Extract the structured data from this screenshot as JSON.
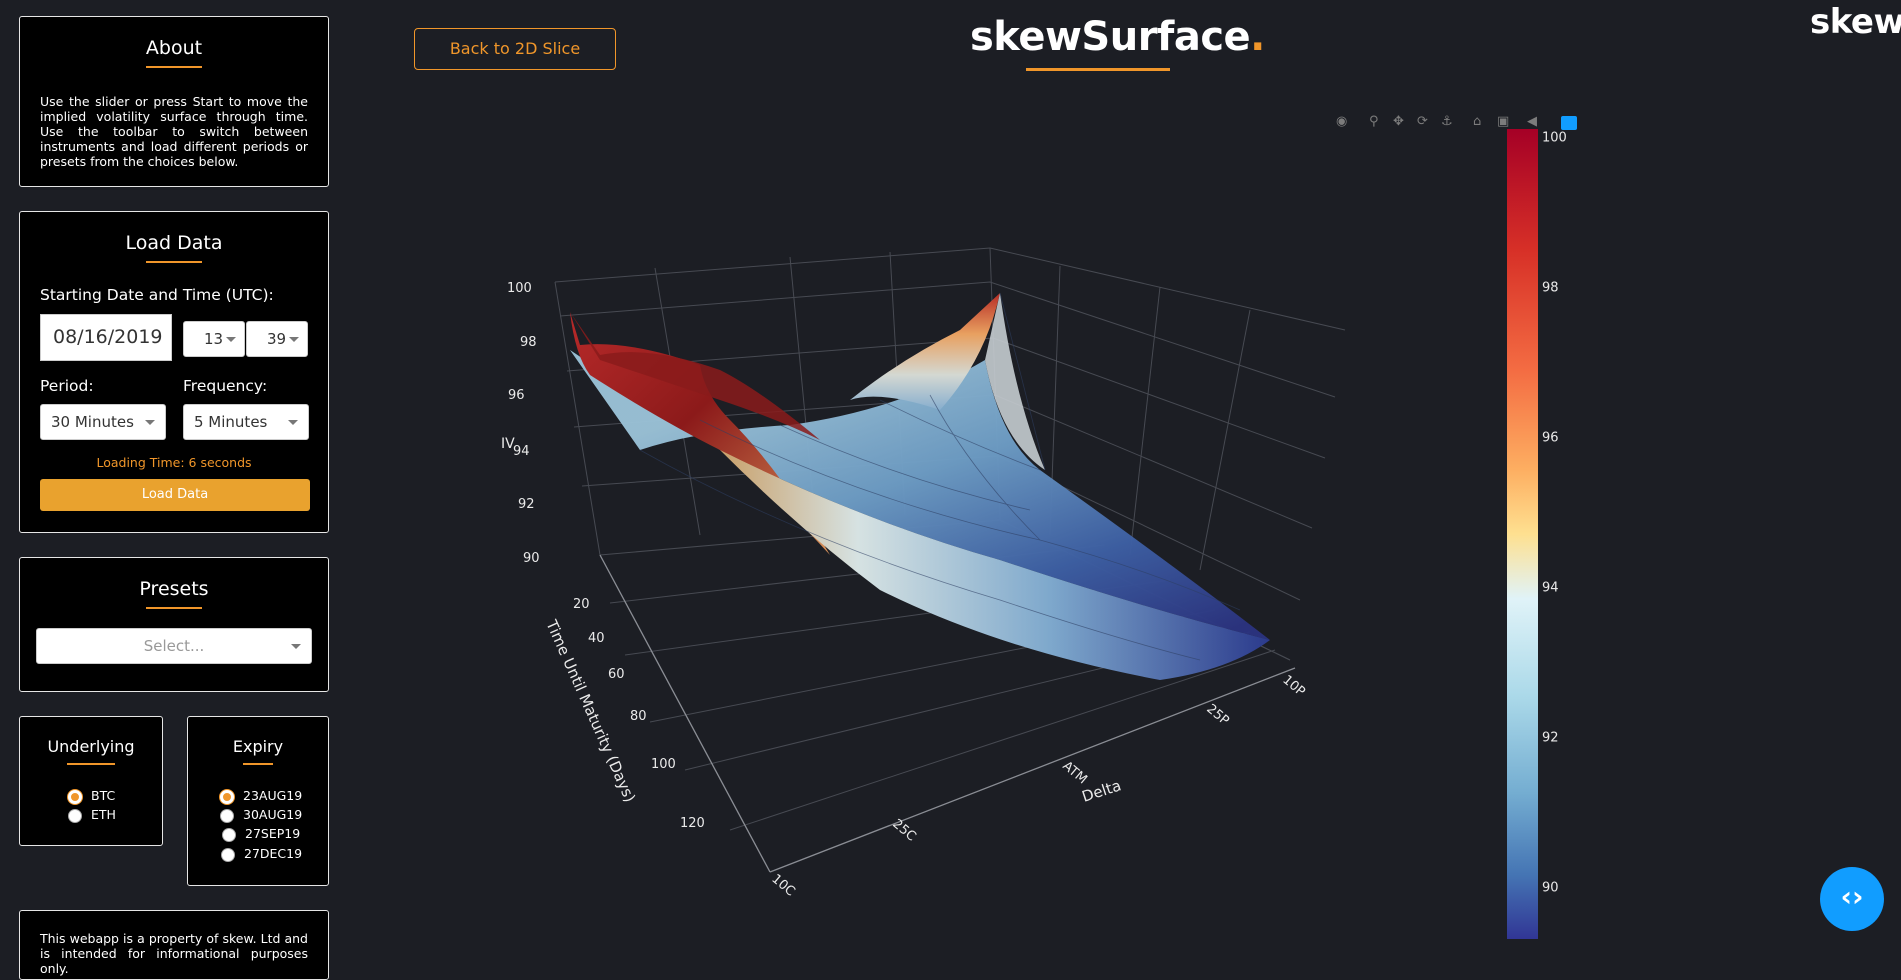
{
  "header": {
    "back_button": "Back to 2D Slice",
    "app_title": "skewSurface",
    "title_dot": ".",
    "logo": "skew",
    "logo_dot": "."
  },
  "about": {
    "title": "About",
    "text": "Use the slider or press Start to move the implied volatility surface through time. Use the toolbar to switch between instruments and load different periods or presets from the choices below."
  },
  "load_data": {
    "title": "Load Data",
    "start_label": "Starting Date and Time (UTC):",
    "date_value": "08/16/2019",
    "hour_value": "13",
    "minute_value": "39",
    "period_label": "Period:",
    "period_value": "30 Minutes",
    "frequency_label": "Frequency:",
    "frequency_value": "5 Minutes",
    "loading_time": "Loading Time: 6 seconds",
    "load_button": "Load Data"
  },
  "presets": {
    "title": "Presets",
    "placeholder": "Select..."
  },
  "underlying": {
    "title": "Underlying",
    "options": [
      {
        "label": "BTC",
        "selected": true
      },
      {
        "label": "ETH",
        "selected": false
      }
    ]
  },
  "expiry": {
    "title": "Expiry",
    "options": [
      {
        "label": "23AUG19",
        "selected": true
      },
      {
        "label": "30AUG19",
        "selected": false
      },
      {
        "label": "27SEP19",
        "selected": false
      },
      {
        "label": "27DEC19",
        "selected": false
      }
    ]
  },
  "footer": {
    "text": "This webapp is a property of skew. Ltd and is intended for informational purposes only."
  },
  "toolbar_icons": [
    "camera-icon",
    "zoom-icon",
    "pan-icon",
    "orbit-icon",
    "turntable-icon",
    "home-icon",
    "camera-reset-icon",
    "hover-icon",
    "plotly-logo-icon"
  ],
  "chart_data": {
    "type": "surface",
    "z_label": "IV",
    "y_label": "Time Until Maturity (Days)",
    "x_label": "Delta",
    "z_ticks": [
      "90",
      "92",
      "94",
      "96",
      "98",
      "100"
    ],
    "y_ticks": [
      "20",
      "40",
      "60",
      "80",
      "100",
      "120"
    ],
    "x_ticks": [
      "10C",
      "25C",
      "ATM",
      "25P",
      "10P"
    ],
    "zlim": [
      89.5,
      100
    ],
    "colorbar": {
      "ticks": [
        "90",
        "92",
        "94",
        "96",
        "98",
        "100"
      ],
      "range": [
        89.3,
        100.1
      ],
      "colorscale": "RdYlBu reversed"
    },
    "colors": {
      "accent": "#f0962a",
      "background": "#1c1e24"
    }
  }
}
